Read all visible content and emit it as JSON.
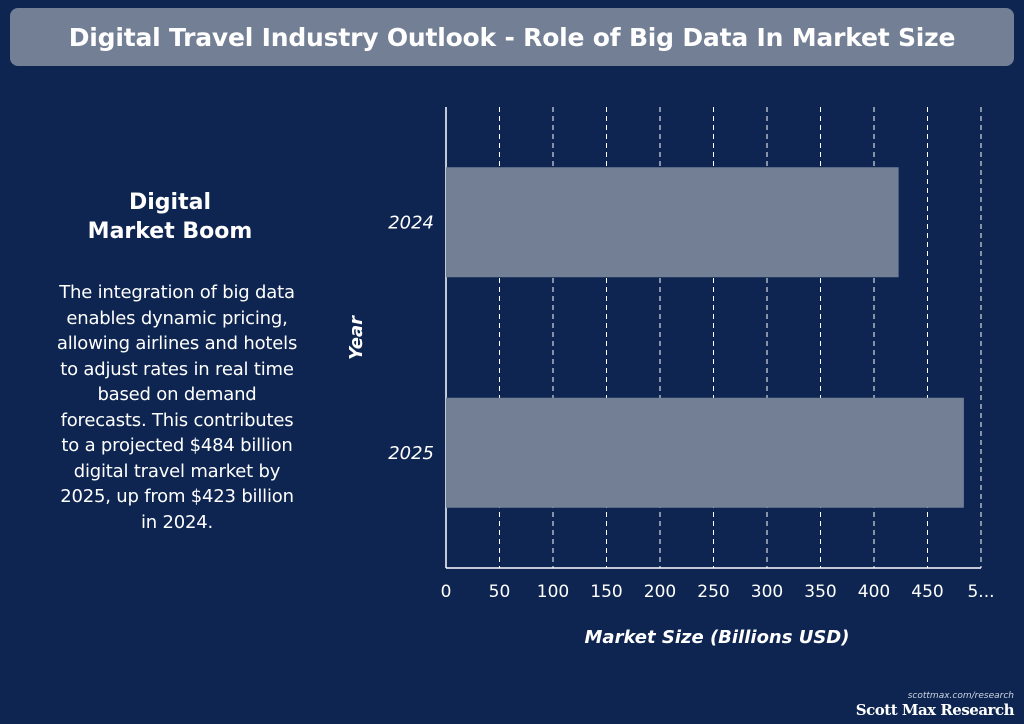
{
  "header": {
    "title": "Digital Travel Industry Outlook - Role of Big Data In Market Size"
  },
  "sidebar": {
    "heading_line1": "Digital",
    "heading_line2": "Market Boom",
    "body": "The integration of big data enables dynamic pricing, allowing airlines and hotels to adjust rates in real time based on demand forecasts. This contributes to a projected $484 billion digital travel market by 2025, up from $423 billion in 2024."
  },
  "chart_data": {
    "type": "bar",
    "orientation": "horizontal",
    "categories": [
      "2024",
      "2025"
    ],
    "values": [
      423,
      484
    ],
    "xlabel": "Market Size (Billions USD)",
    "ylabel": "Year",
    "xlim": [
      0,
      500
    ],
    "xticks": [
      "0",
      "50",
      "100",
      "150",
      "200",
      "250",
      "300",
      "350",
      "400",
      "450",
      "5..."
    ],
    "grid": "vertical-dashed",
    "bar_color": "#737f95",
    "grid_color": "#ffffff"
  },
  "footer": {
    "url": "scottmax.com/research",
    "brand": "Scott Max Research"
  },
  "colors": {
    "background": "#0d2550",
    "title_bar": "#737f95",
    "text": "#ffffff"
  }
}
